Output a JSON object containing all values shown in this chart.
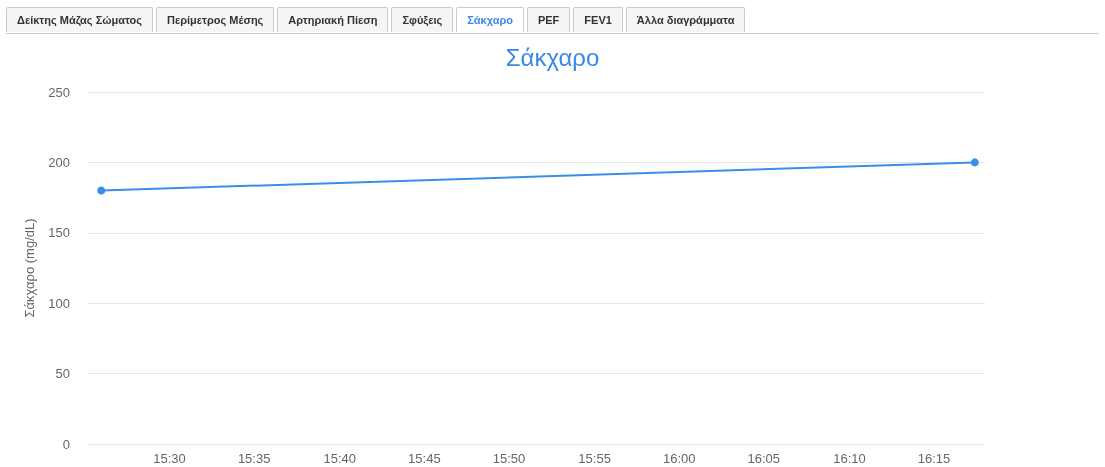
{
  "chart_data": {
    "type": "line",
    "title": "Σάκχαρο",
    "ylabel": "Σάκχαρο (mg/dL)",
    "annotations": [
      "Δείκτης Μάζας Σώματος",
      "Περίμετρος Μέσης",
      "Αρτηριακή Πίεση",
      "Σφύξεις",
      "Σάκχαρο",
      "PEF",
      "FEV1",
      "Άλλα διαγράμματα"
    ],
    "x": [
      15.433,
      16.29
    ],
    "series": [
      {
        "color": "#3a8ee6",
        "values": [
          180,
          200
        ]
      }
    ],
    "xlim": [
      15.42,
      16.3
    ],
    "xticks": [
      {
        "value": 15.5,
        "label": "15:30"
      },
      {
        "value": 15.583,
        "label": "15:35"
      },
      {
        "value": 15.667,
        "label": "15:40"
      },
      {
        "value": 15.75,
        "label": "15:45"
      },
      {
        "value": 15.833,
        "label": "15:50"
      },
      {
        "value": 15.917,
        "label": "15:55"
      },
      {
        "value": 16,
        "label": "16:00"
      },
      {
        "value": 16.083,
        "label": "16:05"
      },
      {
        "value": 16.167,
        "label": "16:10"
      },
      {
        "value": 16.25,
        "label": "16:15"
      }
    ],
    "ylim": [
      0,
      250
    ],
    "yticks": [
      0,
      50,
      100,
      150,
      200,
      250
    ],
    "grid": "y",
    "marker": "circle",
    "line_style": "solid"
  }
}
